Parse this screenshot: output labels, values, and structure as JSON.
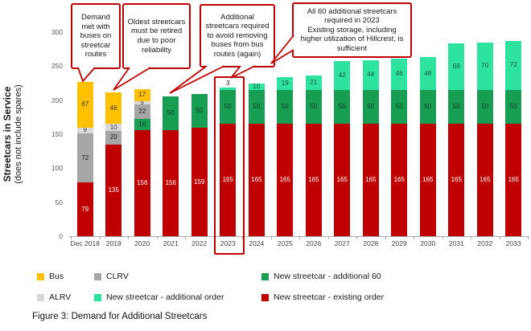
{
  "figure": {
    "caption": "Figure 3: Demand for Additional Streetcars"
  },
  "yaxis": {
    "title": "Streetcars in Service",
    "subtitle": "(does not include spares)"
  },
  "chart_data": {
    "type": "bar",
    "stacked": true,
    "title": "",
    "xlabel": "",
    "ylabel": "Streetcars in Service (does not include spares)",
    "ylim": [
      0,
      300
    ],
    "yticks": [
      0,
      50,
      100,
      150,
      200,
      250,
      300
    ],
    "grid": false,
    "legend_position": "bottom",
    "highlighted_category": "2023",
    "categories": [
      "Dec 2018",
      "2019",
      "2020",
      "2021",
      "2022",
      "2023",
      "2024",
      "2025",
      "2026",
      "2027",
      "2028",
      "2029",
      "2030",
      "2031",
      "2032",
      "2033"
    ],
    "series": [
      {
        "key": "existing-order",
        "name": "New streetcar - existing order",
        "color": "#C00000",
        "label_color": "#ffffff",
        "values": [
          79,
          135,
          156,
          156,
          159,
          165,
          165,
          165,
          165,
          165,
          165,
          165,
          165,
          165,
          165,
          165
        ]
      },
      {
        "key": "additional-60",
        "name": "New streetcar - additional 60",
        "color": "#189E52",
        "label_color": "#0F3B24",
        "values": [
          0,
          0,
          16,
          50,
          50,
          50,
          50,
          50,
          50,
          50,
          50,
          50,
          50,
          50,
          50,
          50
        ]
      },
      {
        "key": "clrv",
        "name": "CLRV",
        "color": "#A6A6A6",
        "label_color": "#1d1d1d",
        "values": [
          72,
          20,
          22,
          0,
          0,
          0,
          0,
          0,
          0,
          0,
          0,
          0,
          0,
          0,
          0,
          0
        ]
      },
      {
        "key": "alrv",
        "name": "ALRV",
        "color": "#D9D9D9",
        "label_color": "#3a3a3a",
        "values": [
          9,
          10,
          5,
          0,
          0,
          0,
          0,
          0,
          0,
          0,
          0,
          0,
          0,
          0,
          0,
          0
        ]
      },
      {
        "key": "bus",
        "name": "Bus",
        "color": "#FFC000",
        "label_color": "#333333",
        "values": [
          67,
          46,
          17,
          0,
          0,
          0,
          0,
          0,
          0,
          0,
          0,
          0,
          0,
          0,
          0,
          0
        ]
      },
      {
        "key": "additional-order",
        "name": "New streetcar - additional order",
        "color": "#2EE3A0",
        "label_color": "#14543A",
        "values": [
          0,
          0,
          0,
          0,
          0,
          3,
          10,
          19,
          21,
          42,
          44,
          46,
          48,
          68,
          70,
          72
        ]
      }
    ],
    "annotations": [
      {
        "text": "Demand met with buses on streetcar routes"
      },
      {
        "text": "Oldest streetcars must be retired due to poor reliability"
      },
      {
        "text": "Additional streetcars required to avoid removing buses from bus routes (again)"
      },
      {
        "line1": "All 60 additional streetcars required in 2023",
        "line2": "Existing storage, including higher utilization of Hillcrest, is sufficient"
      }
    ]
  },
  "legend": {
    "rows": [
      [
        {
          "label": "Bus",
          "color": "#FFC000"
        },
        {
          "label": "CLRV",
          "color": "#A6A6A6"
        },
        {
          "label": "New streetcar - additional 60",
          "color": "#189E52"
        }
      ],
      [
        {
          "label": "ALRV",
          "color": "#D9D9D9"
        },
        {
          "label": "New streetcar - additional order",
          "color": "#2EE3A0"
        },
        {
          "label": "New streetcar - existing order",
          "color": "#C00000"
        }
      ]
    ]
  },
  "colors": {
    "accent_red": "#C00000",
    "axis_line": "#ababab"
  }
}
